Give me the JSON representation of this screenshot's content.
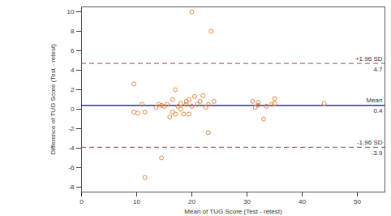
{
  "chart_data": {
    "type": "scatter",
    "x_label": "Mean of TUG Score (Test - retest)",
    "y_label": "Difference of TUG Score (Test - retest)",
    "x": [
      9.5,
      20,
      23.5,
      11.5,
      14.5,
      23,
      44,
      9.5,
      10.2,
      11,
      11.5,
      13.5,
      14,
      14.5,
      15,
      15.5,
      16,
      16.5,
      17,
      17.5,
      17,
      18,
      18.5,
      19,
      19,
      19.5,
      19.5,
      20,
      20.5,
      21,
      21.5,
      22,
      22.5,
      23,
      24,
      18,
      16.5,
      31,
      32,
      32,
      33,
      33.5,
      34.5,
      35,
      35,
      31.5
    ],
    "y": [
      2.6,
      10,
      8,
      -7,
      -5,
      -2.4,
      0.6,
      -0.3,
      -0.4,
      0.5,
      -0.3,
      0.2,
      0.5,
      0.4,
      0.3,
      0.5,
      -0.8,
      1,
      2,
      0.3,
      -0.5,
      0.6,
      -0.5,
      0.5,
      0.8,
      1,
      -0.5,
      0.3,
      1.3,
      0.5,
      0.8,
      1.4,
      0.2,
      0.5,
      0.8,
      0,
      -0.3,
      0.8,
      0.7,
      0.4,
      -1,
      0.3,
      0.5,
      1.1,
      0.6,
      0.2
    ],
    "color": "#e8883a",
    "marker": "circle",
    "xlim": [
      0,
      55
    ],
    "xticks": [
      0,
      10,
      20,
      30,
      40,
      50
    ],
    "ylim": [
      -8.5,
      10.5
    ],
    "yticks": [
      -8,
      -6,
      -4,
      -2,
      0,
      2,
      4,
      6,
      8,
      10
    ],
    "grid": false,
    "lines": [
      {
        "label": "+1.96 SD",
        "value": 4.7,
        "color": "#8b4a4a",
        "line_style": "dashed"
      },
      {
        "label": "Mean",
        "value": 0.4,
        "color": "#2b2bc8",
        "line_style": "solid"
      },
      {
        "label": "-1.96 SD",
        "value": -3.9,
        "color": "#8b4a4a",
        "line_style": "dashed"
      }
    ]
  }
}
